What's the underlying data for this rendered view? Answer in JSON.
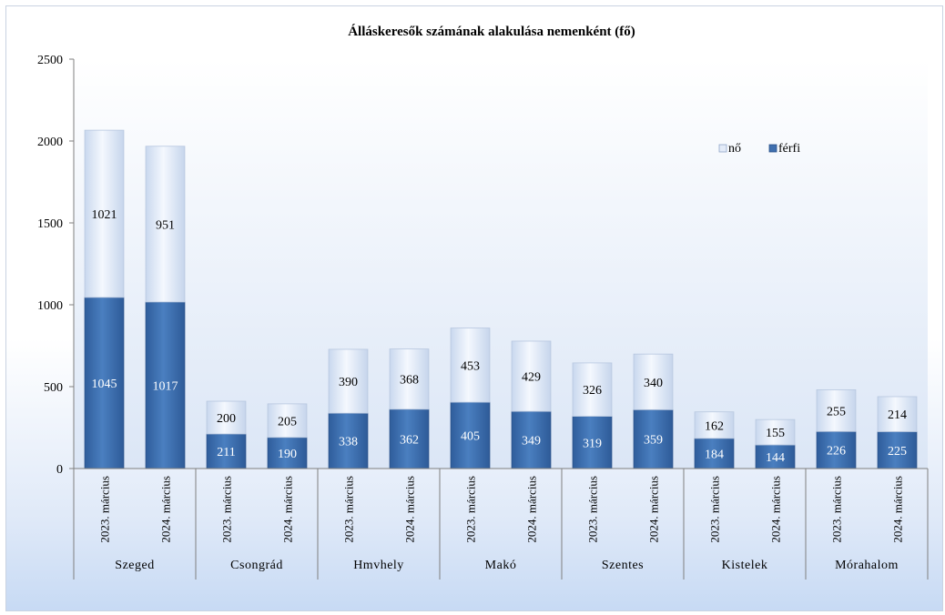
{
  "chart_data": {
    "type": "bar",
    "stacked": true,
    "title": "Álláskeresők számának alakulása nemenként (fő)",
    "xlabel": "",
    "ylabel": "",
    "ylim": [
      0,
      2500
    ],
    "yticks": [
      0,
      500,
      1000,
      1500,
      2000,
      2500
    ],
    "grid": false,
    "legend_position": "top-right",
    "groups": [
      "Szeged",
      "Csongrád",
      "Hmvhely",
      "Makó",
      "Szentes",
      "Kistelek",
      "Mórahalom"
    ],
    "periods": [
      "2023. március",
      "2024. március"
    ],
    "categories": [
      "Szeged 2023. március",
      "Szeged 2024. március",
      "Csongrád 2023. március",
      "Csongrád 2024. március",
      "Hmvhely 2023. március",
      "Hmvhely 2024. március",
      "Makó 2023. március",
      "Makó 2024. március",
      "Szentes 2023. március",
      "Szentes 2024. március",
      "Kistelek 2023. március",
      "Kistelek 2024. március",
      "Mórahalom 2023. március",
      "Mórahalom 2024. március"
    ],
    "series": [
      {
        "name": "férfi",
        "color": "#3f6fae",
        "values": [
          1045,
          1017,
          211,
          190,
          338,
          362,
          405,
          349,
          319,
          359,
          184,
          144,
          226,
          225
        ]
      },
      {
        "name": "nő",
        "color": "#e3ebf8",
        "values": [
          1021,
          951,
          200,
          205,
          390,
          368,
          453,
          429,
          326,
          340,
          162,
          155,
          255,
          214
        ]
      }
    ],
    "legend_order": [
      "nő",
      "férfi"
    ]
  }
}
